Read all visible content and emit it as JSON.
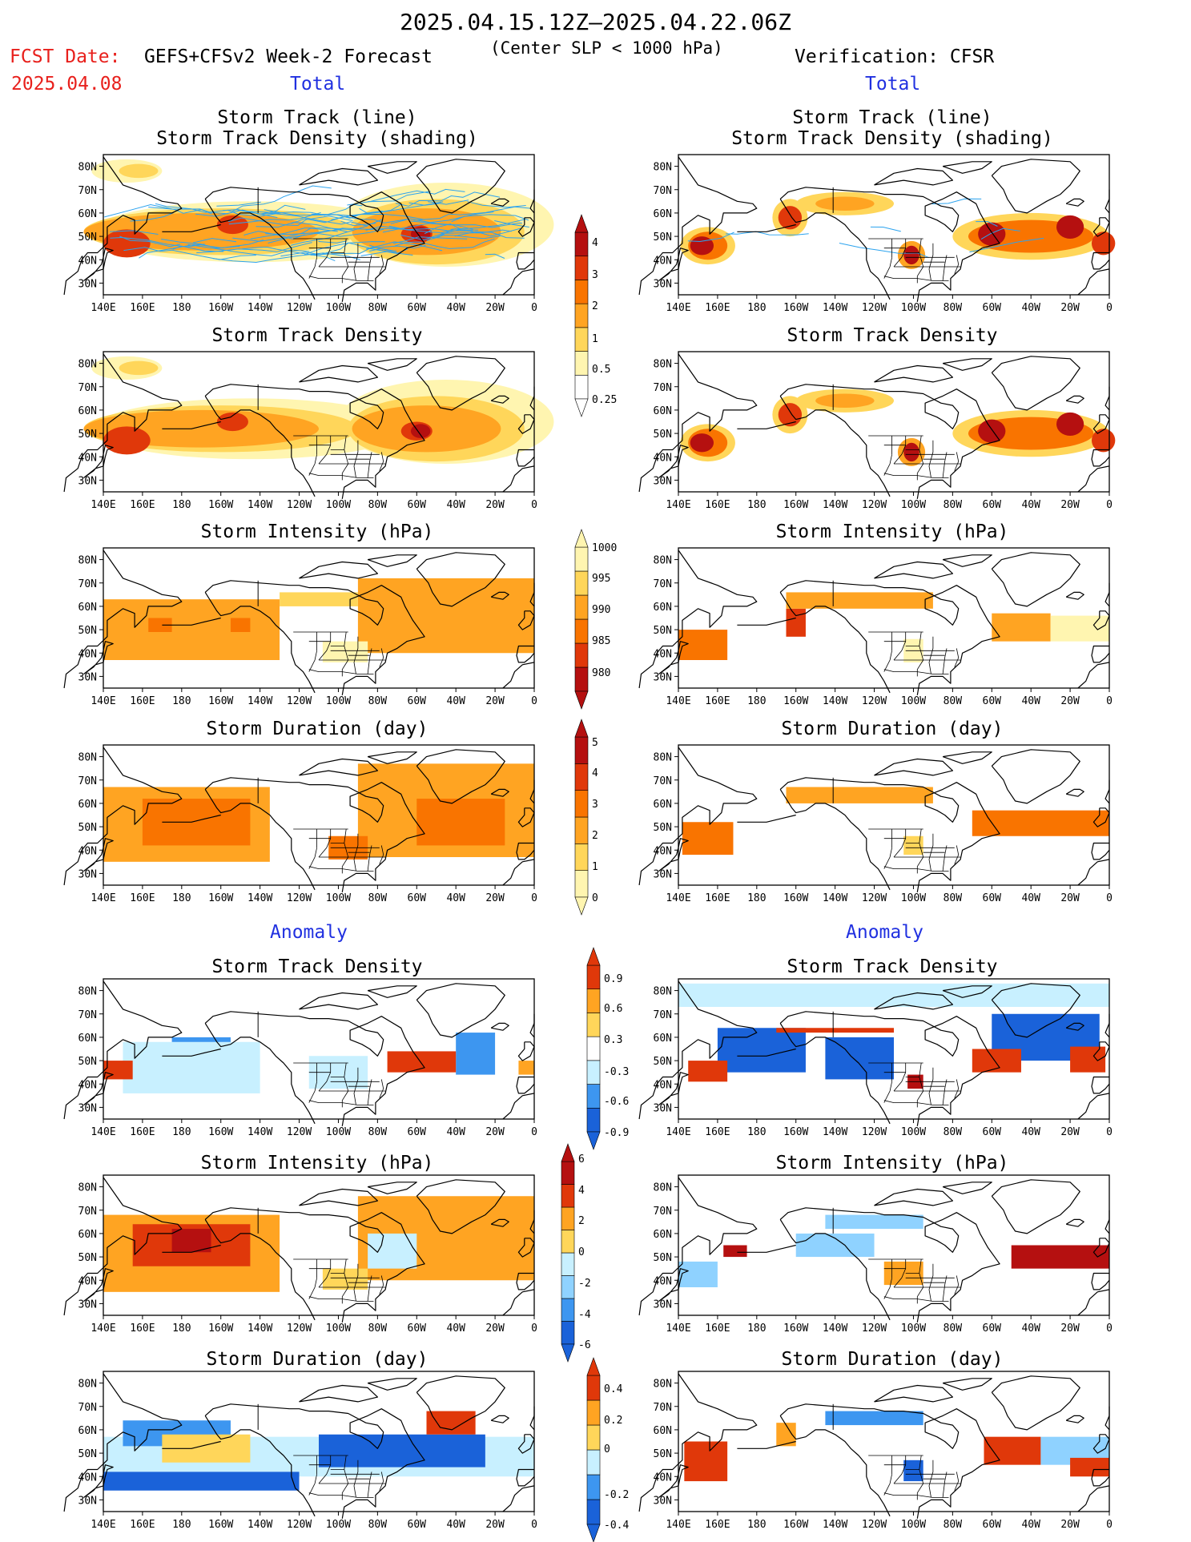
{
  "header": {
    "date_range": "2025.04.15.12Z–2025.04.22.06Z",
    "fcst_label": "FCST Date:",
    "fcst_date": "2025.04.08",
    "model": "GEFS+CFSv2 Week-2 Forecast",
    "criterion": "(Center SLP < 1000 hPa)",
    "verification": "Verification: CFSR"
  },
  "sections": {
    "total": "Total",
    "anomaly": "Anomaly"
  },
  "panel_titles": {
    "track_line": "Storm Track (line)",
    "track_shading": "Storm Track Density (shading)",
    "density": "Storm Track Density",
    "intensity": "Storm Intensity (hPa)",
    "duration": "Storm Duration (day)"
  },
  "axes": {
    "lon_ticks": [
      "140E",
      "160E",
      "180",
      "160W",
      "140W",
      "120W",
      "100W",
      "80W",
      "60W",
      "40W",
      "20W",
      "0"
    ],
    "lat_ticks": [
      "80N",
      "70N",
      "60N",
      "50N",
      "40N",
      "30N"
    ]
  },
  "colorbars": {
    "density_total": [
      "0.25",
      "0.5",
      "1",
      "2",
      "3",
      "4"
    ],
    "intensity_total": [
      "1000",
      "995",
      "990",
      "985",
      "980"
    ],
    "duration_total": [
      "0",
      "1",
      "2",
      "3",
      "4",
      "5"
    ],
    "density_anom": [
      "-0.9",
      "-0.6",
      "-0.3",
      "0.3",
      "0.6",
      "0.9"
    ],
    "intensity_anom": [
      "-6",
      "-4",
      "-2",
      "0",
      "2",
      "4",
      "6"
    ],
    "duration_anom": [
      "-0.4",
      "-0.2",
      "0",
      "0.2",
      "0.4"
    ]
  },
  "colors": {
    "title_red": "#e8201c",
    "section_blue": "#2030e0",
    "track_line": "#2ca3ee",
    "warm": [
      "#fff5b0",
      "#ffd65a",
      "#ffa422",
      "#f97400",
      "#e0380a",
      "#b51010"
    ],
    "cool": [
      "#c8f0ff",
      "#8fd2ff",
      "#3d96f0",
      "#1a62d9"
    ]
  }
}
